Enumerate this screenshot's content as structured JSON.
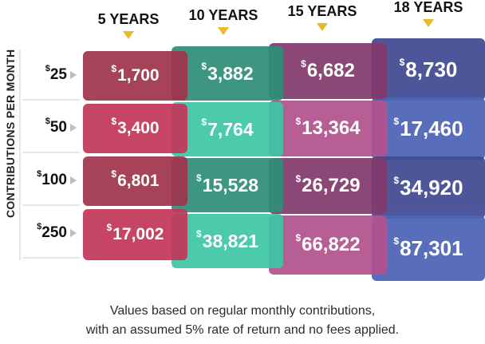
{
  "axis_label": "CONTRIBUTIONS PER MONTH",
  "columns": [
    {
      "label": "5 YEARS"
    },
    {
      "label": "10 YEARS"
    },
    {
      "label": "15 YEARS"
    },
    {
      "label": "18 YEARS"
    }
  ],
  "rows": [
    {
      "label": "25",
      "values": [
        "1,700",
        "3,882",
        "6,682",
        "8,730"
      ]
    },
    {
      "label": "50",
      "values": [
        "3,400",
        "7,764",
        "13,364",
        "17,460"
      ]
    },
    {
      "label": "100",
      "values": [
        "6,801",
        "15,528",
        "26,729",
        "34,920"
      ]
    },
    {
      "label": "250",
      "values": [
        "17,002",
        "38,821",
        "66,822",
        "87,301"
      ]
    }
  ],
  "currency_symbol": "$",
  "footnote": {
    "line1": "Values based on regular monthly contributions,",
    "line2": "with an assumed 5% rate of return and no fees applied."
  },
  "colors": {
    "col1": [
      "#a0354d",
      "#c2385a",
      "#a0354d",
      "#c2385a"
    ],
    "col2": [
      "#2e8f78",
      "#3ec6a6",
      "#2e8f78",
      "#3ec6a6"
    ],
    "col3": [
      "#833a6c",
      "#b2538e",
      "#833a6c",
      "#b2538e"
    ],
    "col4": [
      "#3f4a91",
      "#4d64b6",
      "#3f4a91",
      "#4d64b6"
    ],
    "arrow": "#e9b927"
  }
}
